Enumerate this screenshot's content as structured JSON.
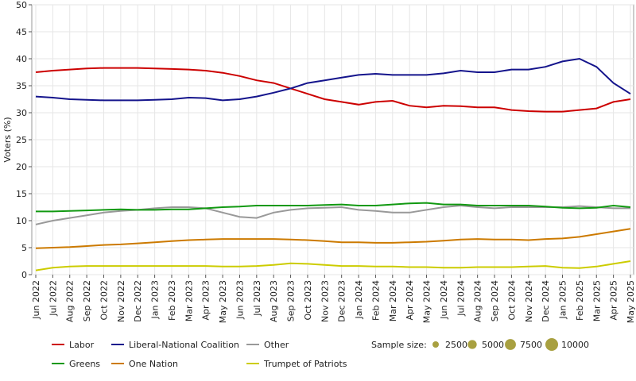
{
  "chart_data": {
    "type": "line",
    "ylabel": "Voters (%)",
    "x": [
      "Jun 2022",
      "Jul 2022",
      "Aug 2022",
      "Sep 2022",
      "Oct 2022",
      "Nov 2022",
      "Dec 2022",
      "Jan 2023",
      "Feb 2023",
      "Mar 2023",
      "Apr 2023",
      "May 2023",
      "Jun 2023",
      "Jul 2023",
      "Aug 2023",
      "Sep 2023",
      "Oct 2023",
      "Nov 2023",
      "Dec 2023",
      "Jan 2024",
      "Feb 2024",
      "Mar 2024",
      "Apr 2024",
      "May 2024",
      "Jun 2024",
      "Jul 2024",
      "Aug 2024",
      "Sep 2024",
      "Oct 2024",
      "Nov 2024",
      "Dec 2024",
      "Jan 2025",
      "Feb 2025",
      "Mar 2025",
      "Apr 2025",
      "May 2025"
    ],
    "ylim": [
      0,
      50
    ],
    "yticks": [
      0,
      5,
      10,
      15,
      20,
      25,
      30,
      35,
      40,
      45,
      50
    ],
    "grid": true,
    "series": [
      {
        "name": "Labor",
        "color": "#cc0000",
        "values": [
          37.5,
          37.8,
          38,
          38.2,
          38.3,
          38.3,
          38.3,
          38.2,
          38.1,
          38,
          37.8,
          37.4,
          36.8,
          36,
          35.5,
          34.5,
          33.5,
          32.5,
          32,
          31.5,
          32,
          32.2,
          31.3,
          31,
          31.3,
          31.2,
          31,
          31,
          30.5,
          30.3,
          30.2,
          30.2,
          30.5,
          30.8,
          32,
          32.5
        ]
      },
      {
        "name": "Liberal-National Coalition",
        "color": "#14148c",
        "values": [
          33,
          32.8,
          32.5,
          32.4,
          32.3,
          32.3,
          32.3,
          32.4,
          32.5,
          32.8,
          32.7,
          32.3,
          32.5,
          33,
          33.7,
          34.5,
          35.5,
          36,
          36.5,
          37,
          37.2,
          37,
          37,
          37,
          37.3,
          37.8,
          37.5,
          37.5,
          38,
          38,
          38.5,
          39.5,
          40,
          38.5,
          35.5,
          33.5
        ]
      },
      {
        "name": "Other",
        "color": "#999999",
        "values": [
          9.3,
          10,
          10.5,
          11,
          11.5,
          11.8,
          12,
          12.3,
          12.5,
          12.5,
          12.3,
          11.5,
          10.7,
          10.5,
          11.5,
          12,
          12.3,
          12.4,
          12.5,
          12,
          11.8,
          11.5,
          11.5,
          12,
          12.5,
          12.8,
          12.5,
          12.3,
          12.5,
          12.5,
          12.5,
          12.5,
          12.7,
          12.5,
          12.3,
          12.3
        ]
      },
      {
        "name": "Greens",
        "color": "#119911",
        "values": [
          11.7,
          11.7,
          11.8,
          11.9,
          12,
          12.1,
          12,
          12,
          12.1,
          12.1,
          12.3,
          12.5,
          12.6,
          12.8,
          12.8,
          12.8,
          12.8,
          12.9,
          13,
          12.8,
          12.8,
          13,
          13.2,
          13.3,
          13,
          13,
          12.8,
          12.8,
          12.8,
          12.8,
          12.6,
          12.4,
          12.3,
          12.4,
          12.8,
          12.5
        ]
      },
      {
        "name": "One Nation",
        "color": "#cc7a00",
        "values": [
          4.9,
          5,
          5.1,
          5.3,
          5.5,
          5.6,
          5.8,
          6,
          6.2,
          6.4,
          6.5,
          6.6,
          6.6,
          6.6,
          6.6,
          6.5,
          6.4,
          6.2,
          6,
          6,
          5.9,
          5.9,
          6,
          6.1,
          6.3,
          6.5,
          6.6,
          6.5,
          6.5,
          6.4,
          6.6,
          6.7,
          7,
          7.5,
          8,
          8.5
        ]
      },
      {
        "name": "Trumpet of Patriots",
        "color": "#cccc00",
        "values": [
          0.8,
          1.3,
          1.5,
          1.6,
          1.6,
          1.6,
          1.6,
          1.6,
          1.6,
          1.6,
          1.6,
          1.5,
          1.5,
          1.6,
          1.8,
          2.1,
          2,
          1.8,
          1.6,
          1.6,
          1.5,
          1.5,
          1.4,
          1.4,
          1.3,
          1.3,
          1.4,
          1.4,
          1.4,
          1.5,
          1.6,
          1.3,
          1.2,
          1.5,
          2,
          2.5
        ]
      }
    ],
    "size_legend": {
      "title": "Sample size:",
      "color": "#a8a040",
      "values": [
        2500,
        5000,
        7500,
        10000
      ]
    }
  }
}
